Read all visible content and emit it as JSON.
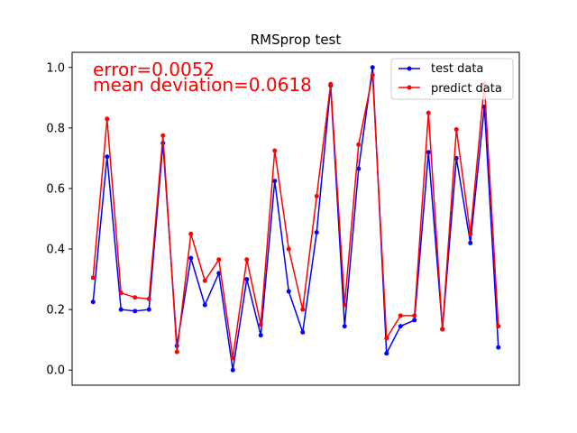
{
  "chart_data": {
    "type": "line",
    "title": "RMSprop test",
    "xlabel": "",
    "ylabel": "",
    "ylim": [
      -0.05,
      1.05
    ],
    "yticks": [
      0.0,
      0.2,
      0.4,
      0.6,
      0.8,
      1.0
    ],
    "ytick_labels": [
      "0.0",
      "0.2",
      "0.4",
      "0.6",
      "0.8",
      "1.0"
    ],
    "xlim": [
      -1.5,
      30.5
    ],
    "x": [
      0,
      1,
      2,
      3,
      4,
      5,
      6,
      7,
      8,
      9,
      10,
      11,
      12,
      13,
      14,
      15,
      16,
      17,
      18,
      19,
      20,
      21,
      22,
      23,
      24,
      25,
      26,
      27,
      28,
      29
    ],
    "series": [
      {
        "name": "test data",
        "color": "#0000ff",
        "values": [
          0.225,
          0.705,
          0.2,
          0.195,
          0.2,
          0.75,
          0.08,
          0.37,
          0.215,
          0.32,
          0.0,
          0.3,
          0.115,
          0.625,
          0.26,
          0.125,
          0.455,
          0.94,
          0.145,
          0.665,
          1.0,
          0.055,
          0.145,
          0.165,
          0.72,
          0.135,
          0.7,
          0.42,
          0.87,
          0.075
        ]
      },
      {
        "name": "predict data",
        "color": "#ff0000",
        "values": [
          0.305,
          0.83,
          0.255,
          0.24,
          0.235,
          0.775,
          0.06,
          0.45,
          0.295,
          0.365,
          0.04,
          0.365,
          0.15,
          0.725,
          0.4,
          0.2,
          0.575,
          0.945,
          0.215,
          0.745,
          0.975,
          0.105,
          0.18,
          0.18,
          0.85,
          0.135,
          0.795,
          0.45,
          0.945,
          0.145
        ]
      }
    ],
    "annotations": [
      "error=0.0052",
      "mean deviation=0.0618"
    ],
    "annotation_color": "#ff0000",
    "legend": "top-right",
    "grid": false
  }
}
